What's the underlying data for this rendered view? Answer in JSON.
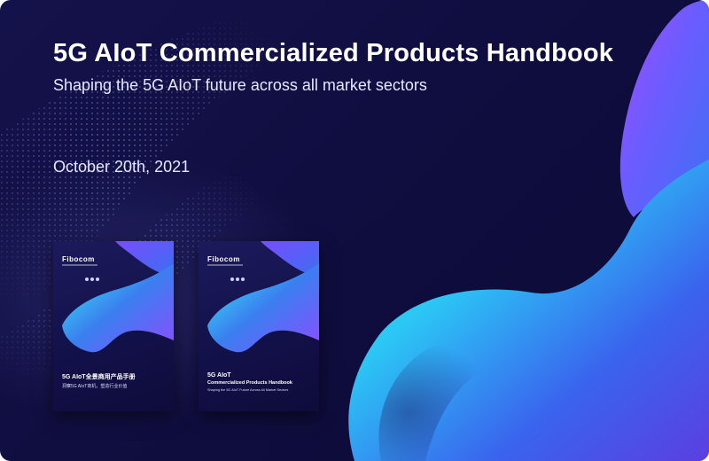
{
  "banner": {
    "title": "5G AIoT Commercialized Products Handbook",
    "subtitle": "Shaping the 5G AIoT future across all market sectors",
    "date": "October 20th, 2021"
  },
  "books": {
    "left": {
      "logo": "Fibocom",
      "title": "5G AIoT全景商用产品手册",
      "subtitle": "洞察5G AIoT商机，塑造行业价值"
    },
    "right": {
      "logo": "Fibocom",
      "title": "5G AIoT",
      "title_line2": "Commercialized Products Handbook",
      "subtitle": "Shaping the 5G AIoT Future Across All Market Sectors"
    }
  },
  "colors": {
    "background": "#110f44",
    "blob_cyan": "#2ee6f5",
    "blob_blue": "#3b6cf0",
    "blob_violet": "#8a4dff",
    "text": "#ffffff"
  }
}
